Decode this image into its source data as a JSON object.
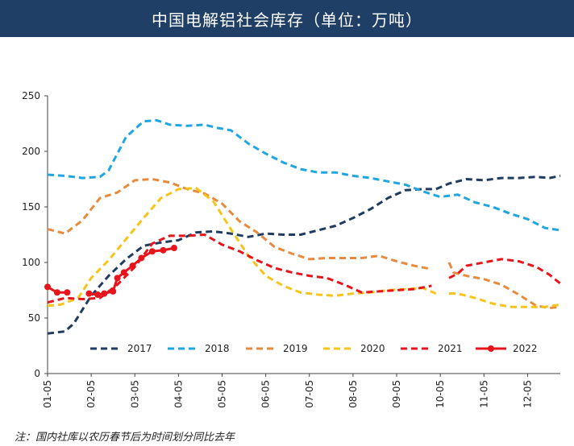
{
  "title": "中国电解铝社会库存（单位：万吨）",
  "note": "注：国内社库以农历春节后为时间划分同比去年",
  "colors": {
    "2017": "#1f3b60",
    "2018": "#1ea6e0",
    "2019": "#e88a3c",
    "2020": "#f7c419",
    "2021": "#e8141b",
    "2022": "#e8141b"
  },
  "chart_data": {
    "type": "line",
    "x_tick_labels": [
      "01-05",
      "02-05",
      "03-05",
      "04-05",
      "05-05",
      "06-05",
      "07-05",
      "08-05",
      "09-05",
      "10-05",
      "11-05",
      "12-05"
    ],
    "xlim": [
      0,
      11.75
    ],
    "ylim": [
      0,
      250
    ],
    "y_ticks": [
      0,
      50,
      100,
      150,
      200,
      250
    ],
    "grid": false,
    "legend_position": "bottom",
    "series": [
      {
        "name": "2017",
        "style": "dashed",
        "values": [
          [
            0,
            36
          ],
          [
            0.4,
            38
          ],
          [
            0.6,
            45
          ],
          [
            1.0,
            70
          ],
          [
            1.4,
            88
          ],
          [
            1.8,
            103
          ],
          [
            2.2,
            115
          ],
          [
            2.6,
            118
          ],
          [
            3.0,
            120
          ],
          [
            3.4,
            127
          ],
          [
            3.8,
            128
          ],
          [
            4.2,
            126
          ],
          [
            4.6,
            123
          ],
          [
            5.0,
            126
          ],
          [
            5.4,
            125
          ],
          [
            5.8,
            125
          ],
          [
            6.2,
            129
          ],
          [
            6.6,
            133
          ],
          [
            7.0,
            140
          ],
          [
            7.4,
            148
          ],
          [
            7.8,
            158
          ],
          [
            8.2,
            165
          ],
          [
            8.6,
            166
          ],
          [
            8.9,
            166
          ],
          [
            9.2,
            171
          ],
          [
            9.6,
            175
          ],
          [
            10.0,
            174
          ],
          [
            10.4,
            176
          ],
          [
            10.8,
            176
          ],
          [
            11.2,
            177
          ],
          [
            11.5,
            176
          ],
          [
            11.75,
            178
          ]
        ]
      },
      {
        "name": "2018",
        "style": "dashed",
        "values": [
          [
            0,
            179
          ],
          [
            0.4,
            178
          ],
          [
            0.8,
            176
          ],
          [
            1.2,
            177
          ],
          [
            1.4,
            183
          ],
          [
            1.8,
            213
          ],
          [
            2.2,
            227
          ],
          [
            2.5,
            228
          ],
          [
            2.8,
            224
          ],
          [
            3.2,
            223
          ],
          [
            3.6,
            224
          ],
          [
            3.9,
            221
          ],
          [
            4.2,
            219
          ],
          [
            4.6,
            207
          ],
          [
            5.0,
            198
          ],
          [
            5.4,
            190
          ],
          [
            5.8,
            184
          ],
          [
            6.2,
            181
          ],
          [
            6.6,
            181
          ],
          [
            7.0,
            178
          ],
          [
            7.4,
            176
          ],
          [
            7.8,
            173
          ],
          [
            8.2,
            170
          ],
          [
            8.6,
            164
          ],
          [
            9.0,
            159
          ],
          [
            9.4,
            161
          ],
          [
            9.8,
            154
          ],
          [
            10.2,
            150
          ],
          [
            10.6,
            144
          ],
          [
            11.0,
            139
          ],
          [
            11.4,
            131
          ],
          [
            11.75,
            129
          ]
        ]
      },
      {
        "name": "2019",
        "style": "dashed",
        "values": [
          [
            0,
            130
          ],
          [
            0.4,
            126
          ],
          [
            0.8,
            138
          ],
          [
            1.2,
            158
          ],
          [
            1.6,
            163
          ],
          [
            2.0,
            174
          ],
          [
            2.4,
            175
          ],
          [
            2.8,
            172
          ],
          [
            3.2,
            166
          ],
          [
            3.6,
            162
          ],
          [
            4.0,
            153
          ],
          [
            4.4,
            137
          ],
          [
            4.8,
            127
          ],
          [
            5.2,
            114
          ],
          [
            5.6,
            108
          ],
          [
            6.0,
            103
          ],
          [
            6.4,
            104
          ],
          [
            6.8,
            104
          ],
          [
            7.2,
            104
          ],
          [
            7.6,
            106
          ],
          [
            8.0,
            101
          ],
          [
            8.4,
            97
          ],
          [
            8.8,
            94
          ],
          [
            null,
            null
          ],
          [
            9.2,
            100
          ],
          [
            9.3,
            91
          ],
          [
            9.6,
            88
          ],
          [
            10.0,
            85
          ],
          [
            10.4,
            80
          ],
          [
            10.8,
            71
          ],
          [
            11.2,
            61
          ],
          [
            11.5,
            59
          ],
          [
            11.75,
            60
          ]
        ]
      },
      {
        "name": "2020",
        "style": "dashed",
        "values": [
          [
            0,
            61
          ],
          [
            0.3,
            62
          ],
          [
            0.7,
            68
          ],
          [
            1.0,
            86
          ],
          [
            1.4,
            102
          ],
          [
            1.8,
            121
          ],
          [
            2.2,
            140
          ],
          [
            2.6,
            158
          ],
          [
            3.0,
            166
          ],
          [
            3.4,
            167
          ],
          [
            3.8,
            155
          ],
          [
            4.2,
            130
          ],
          [
            4.6,
            106
          ],
          [
            5.0,
            88
          ],
          [
            5.4,
            79
          ],
          [
            5.8,
            73
          ],
          [
            6.2,
            71
          ],
          [
            6.6,
            70
          ],
          [
            7.0,
            72
          ],
          [
            7.4,
            73
          ],
          [
            7.8,
            75
          ],
          [
            8.2,
            76
          ],
          [
            8.6,
            77
          ],
          [
            8.9,
            72
          ],
          [
            null,
            null
          ],
          [
            9.2,
            72
          ],
          [
            9.4,
            72
          ],
          [
            9.8,
            68
          ],
          [
            10.2,
            63
          ],
          [
            10.6,
            60
          ],
          [
            11.0,
            60
          ],
          [
            11.4,
            60
          ],
          [
            11.75,
            62
          ]
        ]
      },
      {
        "name": "2021",
        "style": "dashed",
        "values": [
          [
            0,
            64
          ],
          [
            0.4,
            68
          ],
          [
            0.8,
            67
          ],
          [
            1.2,
            68
          ],
          [
            1.6,
            80
          ],
          [
            2.0,
            96
          ],
          [
            2.4,
            117
          ],
          [
            2.8,
            124
          ],
          [
            3.2,
            124
          ],
          [
            3.6,
            125
          ],
          [
            4.0,
            116
          ],
          [
            4.4,
            110
          ],
          [
            4.8,
            102
          ],
          [
            5.2,
            95
          ],
          [
            5.6,
            91
          ],
          [
            6.0,
            88
          ],
          [
            6.4,
            86
          ],
          [
            6.8,
            80
          ],
          [
            7.2,
            73
          ],
          [
            7.6,
            74
          ],
          [
            8.0,
            75
          ],
          [
            8.4,
            76
          ],
          [
            8.8,
            79
          ],
          [
            null,
            null
          ],
          [
            9.2,
            86
          ],
          [
            9.4,
            90
          ],
          [
            9.6,
            97
          ],
          [
            10.0,
            100
          ],
          [
            10.4,
            103
          ],
          [
            10.8,
            101
          ],
          [
            11.2,
            96
          ],
          [
            11.5,
            89
          ],
          [
            11.75,
            81
          ]
        ]
      },
      {
        "name": "2022",
        "style": "solid-marker",
        "values": [
          [
            0,
            78
          ],
          [
            0.22,
            73
          ],
          [
            0.45,
            73
          ],
          [
            null,
            null
          ],
          [
            0.95,
            72
          ],
          [
            1.15,
            71
          ],
          [
            1.3,
            72
          ],
          [
            1.5,
            74
          ],
          [
            1.6,
            86
          ],
          [
            1.75,
            91
          ],
          [
            1.95,
            97
          ],
          [
            2.15,
            104
          ],
          [
            2.4,
            110
          ],
          [
            2.65,
            111
          ],
          [
            2.9,
            113
          ]
        ]
      }
    ]
  }
}
